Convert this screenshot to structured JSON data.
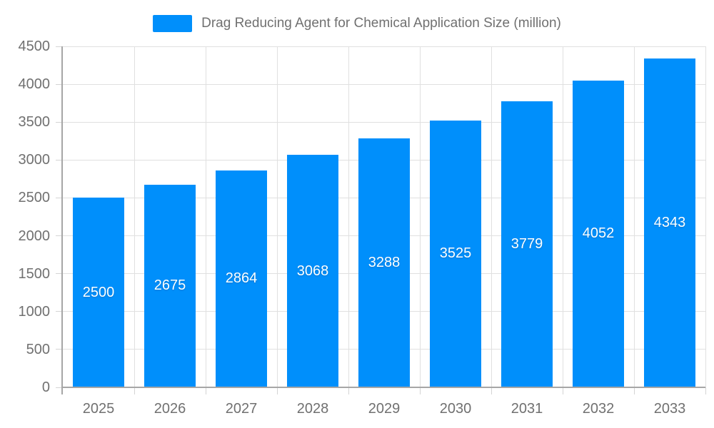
{
  "legend": {
    "label": "Drag Reducing Agent for Chemical Application Size (million)"
  },
  "chart_data": {
    "type": "bar",
    "title": "Drag Reducing Agent for Chemical Application Size (million)",
    "series_name": "Drag Reducing Agent for Chemical Application Size (million)",
    "categories": [
      "2025",
      "2026",
      "2027",
      "2028",
      "2029",
      "2030",
      "2031",
      "2032",
      "2033"
    ],
    "values": [
      2500,
      2675,
      2864,
      3068,
      3288,
      3525,
      3779,
      4052,
      4343
    ],
    "xlabel": "",
    "ylabel": "",
    "ylim": [
      0,
      4500
    ],
    "ytick_step": 500,
    "grid": true,
    "legend_position": "top",
    "data_labels": "inside-center"
  },
  "colors": {
    "bar": "#008FFB",
    "data_label": "#FFFFFF",
    "axis_text": "#707070",
    "legend_text": "#707070",
    "gridline": "#E0E0E0",
    "axis_border": "#A6A6A6",
    "tick": "#D4D4D4",
    "background": "#FFFFFF"
  }
}
